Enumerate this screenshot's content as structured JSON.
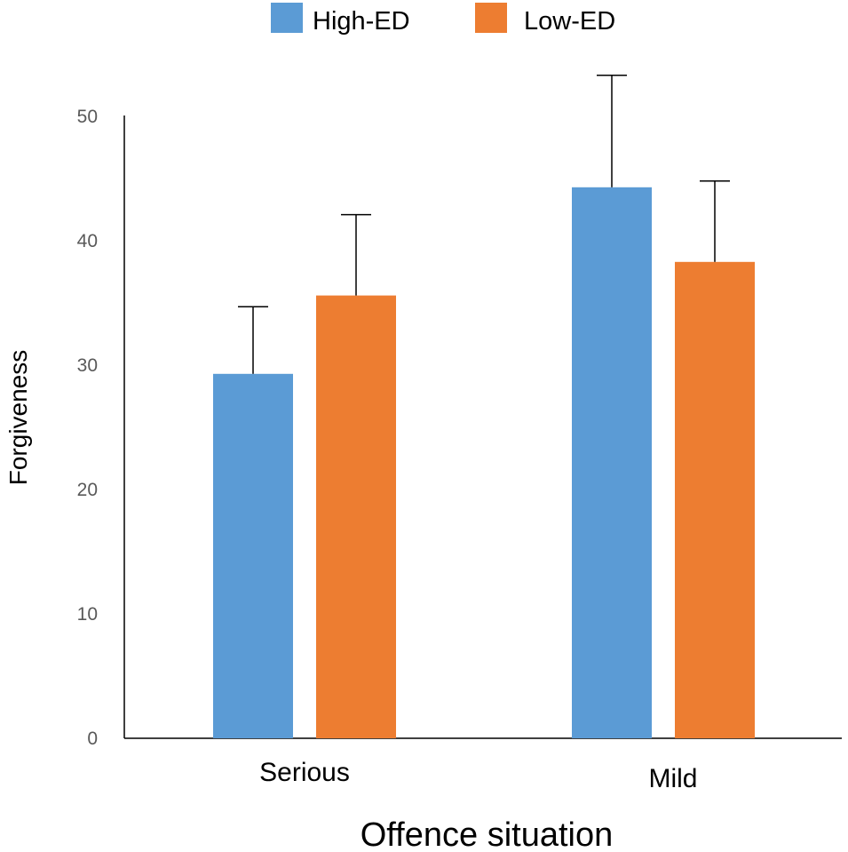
{
  "chart_data": {
    "type": "bar",
    "title": "",
    "xlabel": "Offence situation",
    "ylabel": "Forgiveness",
    "categories": [
      "Serious",
      "Mild"
    ],
    "ylim": [
      0,
      50
    ],
    "yticks": [
      0,
      10,
      20,
      30,
      40,
      50
    ],
    "grid": false,
    "legend_position": "top-center",
    "series": [
      {
        "name": "High-ED",
        "color": "#5B9BD5",
        "values": [
          29.3,
          44.3
        ],
        "error": [
          5.4,
          9.0
        ]
      },
      {
        "name": "Low-ED",
        "color": "#ED7D31",
        "values": [
          35.6,
          38.3
        ],
        "error": [
          6.5,
          6.5
        ]
      }
    ]
  }
}
